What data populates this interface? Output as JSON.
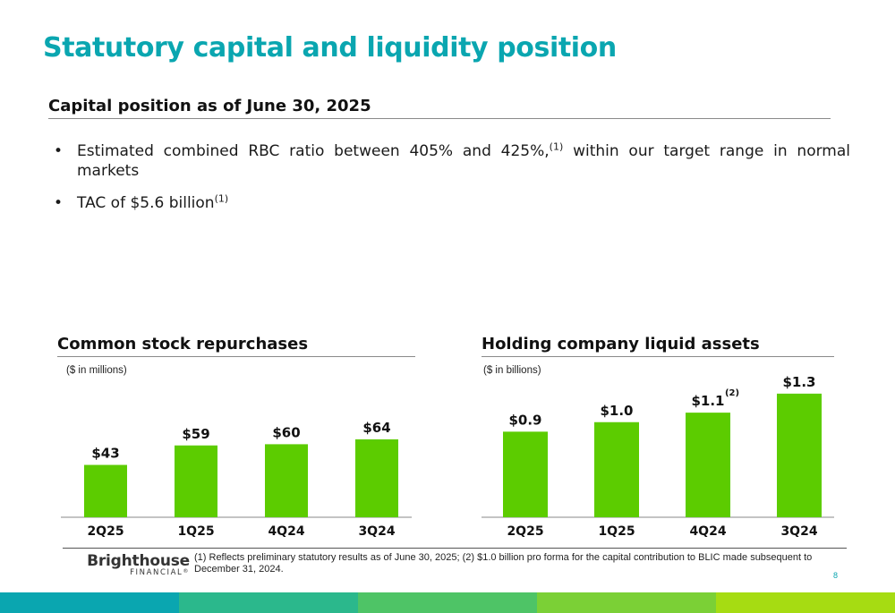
{
  "page": {
    "title": "Statutory capital and liquidity position",
    "section_heading": "Capital position as of June 30, 2025",
    "bullets": [
      {
        "marker": "•",
        "text": "Estimated combined RBC ratio between 405% and 425%,",
        "sup": "(1)",
        "text_after": " within our target range in normal markets"
      },
      {
        "marker": "•",
        "text": "TAC of  $5.6 billion",
        "sup": "(1)",
        "text_after": ""
      }
    ],
    "footnote": "(1) Reflects preliminary statutory results as of June 30, 2025; (2) $1.0 billion pro forma for the capital contribution to BLIC made subsequent to December 31, 2024.",
    "page_number": "8",
    "logo": {
      "name": "Brighthouse",
      "sub": "FINANCIAL",
      "mark": "®"
    }
  },
  "colors": {
    "title": "#0aa6b0",
    "bar": "#5ccc00",
    "strip": [
      "#0aa6b0",
      "#2bb88c",
      "#4ec466",
      "#7bd036",
      "#a6dc12"
    ]
  },
  "chart_data": [
    {
      "type": "bar",
      "title": "Common stock repurchases",
      "unit_note": "($ in millions)",
      "categories": [
        "2Q25",
        "1Q25",
        "4Q24",
        "3Q24"
      ],
      "values": [
        43,
        59,
        60,
        64
      ],
      "value_labels": [
        "$43",
        "$59",
        "$60",
        "$64"
      ],
      "annotations": [
        "",
        "",
        "",
        ""
      ],
      "ylim": [
        0,
        125
      ],
      "xlabel": "",
      "ylabel": ""
    },
    {
      "type": "bar",
      "title": "Holding company liquid assets",
      "unit_note": "($ in billions)",
      "categories": [
        "2Q25",
        "1Q25",
        "4Q24",
        "3Q24"
      ],
      "values": [
        0.9,
        1.0,
        1.1,
        1.3
      ],
      "value_labels": [
        "$0.9",
        "$1.0",
        "$1.1",
        "$1.3"
      ],
      "annotations": [
        "",
        "",
        "(2)",
        ""
      ],
      "ylim": [
        0,
        1.6
      ],
      "xlabel": "",
      "ylabel": ""
    }
  ]
}
